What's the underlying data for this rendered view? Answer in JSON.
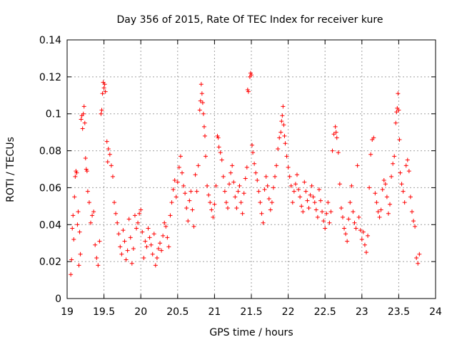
{
  "chart_data": {
    "type": "scatter",
    "title": "Day 356 of 2015, Rate Of TEC Index for receiver kure",
    "xlabel": "GPS time / hours",
    "ylabel": "ROTI / TECUs",
    "xlim": [
      19,
      24
    ],
    "ylim": [
      0,
      0.14
    ],
    "xticks": [
      19,
      19.5,
      20,
      20.5,
      21,
      21.5,
      22,
      22.5,
      23,
      23.5,
      24
    ],
    "xtick_labels": [
      "19",
      "19.5",
      "20",
      "20.5",
      "21",
      "21.5",
      "22",
      "22.5",
      "23",
      "23.5",
      "24"
    ],
    "yticks": [
      0,
      0.02,
      0.04,
      0.06,
      0.08,
      0.1,
      0.12,
      0.14
    ],
    "ytick_labels": [
      "0",
      "0.02",
      "0.04",
      "0.06",
      "0.08",
      "0.1",
      "0.12",
      "0.14"
    ],
    "grid": true,
    "marker": "+",
    "color": "#ff0000",
    "series": [
      {
        "name": "ROTI",
        "points": [
          [
            19.05,
            0.013
          ],
          [
            19.06,
            0.021
          ],
          [
            19.07,
            0.038
          ],
          [
            19.08,
            0.045
          ],
          [
            19.09,
            0.032
          ],
          [
            19.1,
            0.055
          ],
          [
            19.11,
            0.066
          ],
          [
            19.12,
            0.069
          ],
          [
            19.13,
            0.068
          ],
          [
            19.14,
            0.04
          ],
          [
            19.15,
            0.047
          ],
          [
            19.16,
            0.018
          ],
          [
            19.17,
            0.036
          ],
          [
            19.18,
            0.024
          ],
          [
            19.19,
            0.097
          ],
          [
            19.2,
            0.099
          ],
          [
            19.21,
            0.092
          ],
          [
            19.22,
            0.1
          ],
          [
            19.23,
            0.104
          ],
          [
            19.24,
            0.095
          ],
          [
            19.25,
            0.076
          ],
          [
            19.26,
            0.07
          ],
          [
            19.27,
            0.069
          ],
          [
            19.28,
            0.058
          ],
          [
            19.3,
            0.052
          ],
          [
            19.32,
            0.041
          ],
          [
            19.34,
            0.045
          ],
          [
            19.36,
            0.047
          ],
          [
            19.38,
            0.029
          ],
          [
            19.4,
            0.022
          ],
          [
            19.42,
            0.018
          ],
          [
            19.44,
            0.031
          ],
          [
            19.46,
            0.1
          ],
          [
            19.47,
            0.102
          ],
          [
            19.48,
            0.111
          ],
          [
            19.49,
            0.117
          ],
          [
            19.5,
            0.114
          ],
          [
            19.51,
            0.116
          ],
          [
            19.52,
            0.112
          ],
          [
            19.54,
            0.085
          ],
          [
            19.55,
            0.074
          ],
          [
            19.56,
            0.081
          ],
          [
            19.58,
            0.078
          ],
          [
            19.6,
            0.072
          ],
          [
            19.62,
            0.066
          ],
          [
            19.64,
            0.052
          ],
          [
            19.66,
            0.046
          ],
          [
            19.68,
            0.041
          ],
          [
            19.7,
            0.035
          ],
          [
            19.72,
            0.028
          ],
          [
            19.74,
            0.024
          ],
          [
            19.76,
            0.037
          ],
          [
            19.78,
            0.031
          ],
          [
            19.8,
            0.021
          ],
          [
            19.82,
            0.026
          ],
          [
            19.84,
            0.043
          ],
          [
            19.86,
            0.033
          ],
          [
            19.88,
            0.019
          ],
          [
            19.9,
            0.027
          ],
          [
            19.92,
            0.045
          ],
          [
            19.94,
            0.038
          ],
          [
            19.96,
            0.041
          ],
          [
            19.98,
            0.046
          ],
          [
            20.0,
            0.048
          ],
          [
            20.02,
            0.036
          ],
          [
            20.04,
            0.022
          ],
          [
            20.06,
            0.031
          ],
          [
            20.08,
            0.028
          ],
          [
            20.1,
            0.038
          ],
          [
            20.12,
            0.033
          ],
          [
            20.14,
            0.029
          ],
          [
            20.16,
            0.024
          ],
          [
            20.18,
            0.035
          ],
          [
            20.2,
            0.018
          ],
          [
            20.22,
            0.022
          ],
          [
            20.24,
            0.027
          ],
          [
            20.26,
            0.03
          ],
          [
            20.28,
            0.026
          ],
          [
            20.3,
            0.034
          ],
          [
            20.32,
            0.041
          ],
          [
            20.34,
            0.039
          ],
          [
            20.36,
            0.033
          ],
          [
            20.38,
            0.028
          ],
          [
            20.4,
            0.045
          ],
          [
            20.42,
            0.052
          ],
          [
            20.44,
            0.059
          ],
          [
            20.46,
            0.064
          ],
          [
            20.48,
            0.055
          ],
          [
            20.5,
            0.063
          ],
          [
            20.52,
            0.071
          ],
          [
            20.54,
            0.077
          ],
          [
            20.56,
            0.068
          ],
          [
            20.58,
            0.061
          ],
          [
            20.6,
            0.057
          ],
          [
            20.62,
            0.049
          ],
          [
            20.64,
            0.042
          ],
          [
            20.66,
            0.053
          ],
          [
            20.68,
            0.058
          ],
          [
            20.7,
            0.048
          ],
          [
            20.72,
            0.039
          ],
          [
            20.74,
            0.067
          ],
          [
            20.76,
            0.058
          ],
          [
            20.78,
            0.072
          ],
          [
            20.8,
            0.102
          ],
          [
            20.81,
            0.107
          ],
          [
            20.82,
            0.116
          ],
          [
            20.83,
            0.111
          ],
          [
            20.84,
            0.106
          ],
          [
            20.85,
            0.1
          ],
          [
            20.86,
            0.093
          ],
          [
            20.87,
            0.088
          ],
          [
            20.88,
            0.077
          ],
          [
            20.9,
            0.061
          ],
          [
            20.92,
            0.056
          ],
          [
            20.94,
            0.052
          ],
          [
            20.96,
            0.048
          ],
          [
            20.98,
            0.044
          ],
          [
            21.0,
            0.051
          ],
          [
            21.02,
            0.061
          ],
          [
            21.04,
            0.088
          ],
          [
            21.05,
            0.087
          ],
          [
            21.06,
            0.082
          ],
          [
            21.08,
            0.079
          ],
          [
            21.1,
            0.075
          ],
          [
            21.12,
            0.066
          ],
          [
            21.14,
            0.058
          ],
          [
            21.16,
            0.052
          ],
          [
            21.18,
            0.049
          ],
          [
            21.2,
            0.062
          ],
          [
            21.22,
            0.068
          ],
          [
            21.24,
            0.072
          ],
          [
            21.26,
            0.063
          ],
          [
            21.28,
            0.055
          ],
          [
            21.3,
            0.049
          ],
          [
            21.32,
            0.058
          ],
          [
            21.34,
            0.061
          ],
          [
            21.36,
            0.052
          ],
          [
            21.38,
            0.046
          ],
          [
            21.4,
            0.057
          ],
          [
            21.42,
            0.065
          ],
          [
            21.44,
            0.071
          ],
          [
            21.45,
            0.113
          ],
          [
            21.46,
            0.112
          ],
          [
            21.48,
            0.12
          ],
          [
            21.49,
            0.122
          ],
          [
            21.5,
            0.121
          ],
          [
            21.51,
            0.083
          ],
          [
            21.52,
            0.079
          ],
          [
            21.54,
            0.073
          ],
          [
            21.56,
            0.068
          ],
          [
            21.58,
            0.064
          ],
          [
            21.6,
            0.058
          ],
          [
            21.62,
            0.052
          ],
          [
            21.64,
            0.046
          ],
          [
            21.66,
            0.041
          ],
          [
            21.68,
            0.059
          ],
          [
            21.7,
            0.066
          ],
          [
            21.72,
            0.061
          ],
          [
            21.74,
            0.054
          ],
          [
            21.76,
            0.048
          ],
          [
            21.78,
            0.052
          ],
          [
            21.8,
            0.06
          ],
          [
            21.82,
            0.066
          ],
          [
            21.84,
            0.072
          ],
          [
            21.86,
            0.081
          ],
          [
            21.88,
            0.087
          ],
          [
            21.9,
            0.09
          ],
          [
            21.91,
            0.096
          ],
          [
            21.92,
            0.099
          ],
          [
            21.93,
            0.104
          ],
          [
            21.94,
            0.094
          ],
          [
            21.95,
            0.088
          ],
          [
            21.96,
            0.084
          ],
          [
            21.98,
            0.077
          ],
          [
            22.0,
            0.071
          ],
          [
            22.02,
            0.066
          ],
          [
            22.04,
            0.061
          ],
          [
            22.06,
            0.052
          ],
          [
            22.08,
            0.058
          ],
          [
            22.1,
            0.062
          ],
          [
            22.12,
            0.067
          ],
          [
            22.14,
            0.059
          ],
          [
            22.16,
            0.055
          ],
          [
            22.18,
            0.05
          ],
          [
            22.2,
            0.047
          ],
          [
            22.22,
            0.063
          ],
          [
            22.24,
            0.058
          ],
          [
            22.26,
            0.053
          ],
          [
            22.28,
            0.049
          ],
          [
            22.3,
            0.056
          ],
          [
            22.32,
            0.061
          ],
          [
            22.34,
            0.055
          ],
          [
            22.36,
            0.052
          ],
          [
            22.38,
            0.048
          ],
          [
            22.4,
            0.044
          ],
          [
            22.42,
            0.059
          ],
          [
            22.44,
            0.053
          ],
          [
            22.46,
            0.047
          ],
          [
            22.48,
            0.042
          ],
          [
            22.5,
            0.038
          ],
          [
            22.52,
            0.046
          ],
          [
            22.54,
            0.052
          ],
          [
            22.56,
            0.041
          ],
          [
            22.58,
            0.047
          ],
          [
            22.6,
            0.08
          ],
          [
            22.62,
            0.089
          ],
          [
            22.64,
            0.093
          ],
          [
            22.65,
            0.09
          ],
          [
            22.66,
            0.087
          ],
          [
            22.68,
            0.079
          ],
          [
            22.7,
            0.062
          ],
          [
            22.72,
            0.049
          ],
          [
            22.74,
            0.044
          ],
          [
            22.76,
            0.038
          ],
          [
            22.78,
            0.035
          ],
          [
            22.8,
            0.031
          ],
          [
            22.82,
            0.043
          ],
          [
            22.84,
            0.052
          ],
          [
            22.86,
            0.061
          ],
          [
            22.88,
            0.047
          ],
          [
            22.9,
            0.041
          ],
          [
            22.92,
            0.038
          ],
          [
            22.94,
            0.072
          ],
          [
            22.96,
            0.044
          ],
          [
            22.98,
            0.037
          ],
          [
            23.0,
            0.032
          ],
          [
            23.02,
            0.036
          ],
          [
            23.04,
            0.029
          ],
          [
            23.06,
            0.025
          ],
          [
            23.08,
            0.034
          ],
          [
            23.1,
            0.06
          ],
          [
            23.12,
            0.078
          ],
          [
            23.14,
            0.086
          ],
          [
            23.16,
            0.087
          ],
          [
            23.18,
            0.057
          ],
          [
            23.2,
            0.052
          ],
          [
            23.22,
            0.047
          ],
          [
            23.24,
            0.044
          ],
          [
            23.26,
            0.048
          ],
          [
            23.28,
            0.059
          ],
          [
            23.3,
            0.064
          ],
          [
            23.32,
            0.062
          ],
          [
            23.34,
            0.055
          ],
          [
            23.36,
            0.046
          ],
          [
            23.38,
            0.051
          ],
          [
            23.4,
            0.066
          ],
          [
            23.42,
            0.073
          ],
          [
            23.44,
            0.077
          ],
          [
            23.46,
            0.095
          ],
          [
            23.47,
            0.101
          ],
          [
            23.48,
            0.103
          ],
          [
            23.49,
            0.111
          ],
          [
            23.5,
            0.102
          ],
          [
            23.51,
            0.086
          ],
          [
            23.52,
            0.068
          ],
          [
            23.54,
            0.062
          ],
          [
            23.56,
            0.058
          ],
          [
            23.58,
            0.052
          ],
          [
            23.6,
            0.072
          ],
          [
            23.62,
            0.075
          ],
          [
            23.64,
            0.069
          ],
          [
            23.66,
            0.055
          ],
          [
            23.68,
            0.047
          ],
          [
            23.7,
            0.042
          ],
          [
            23.72,
            0.039
          ],
          [
            23.74,
            0.022
          ],
          [
            23.76,
            0.019
          ],
          [
            23.78,
            0.024
          ]
        ]
      }
    ]
  }
}
